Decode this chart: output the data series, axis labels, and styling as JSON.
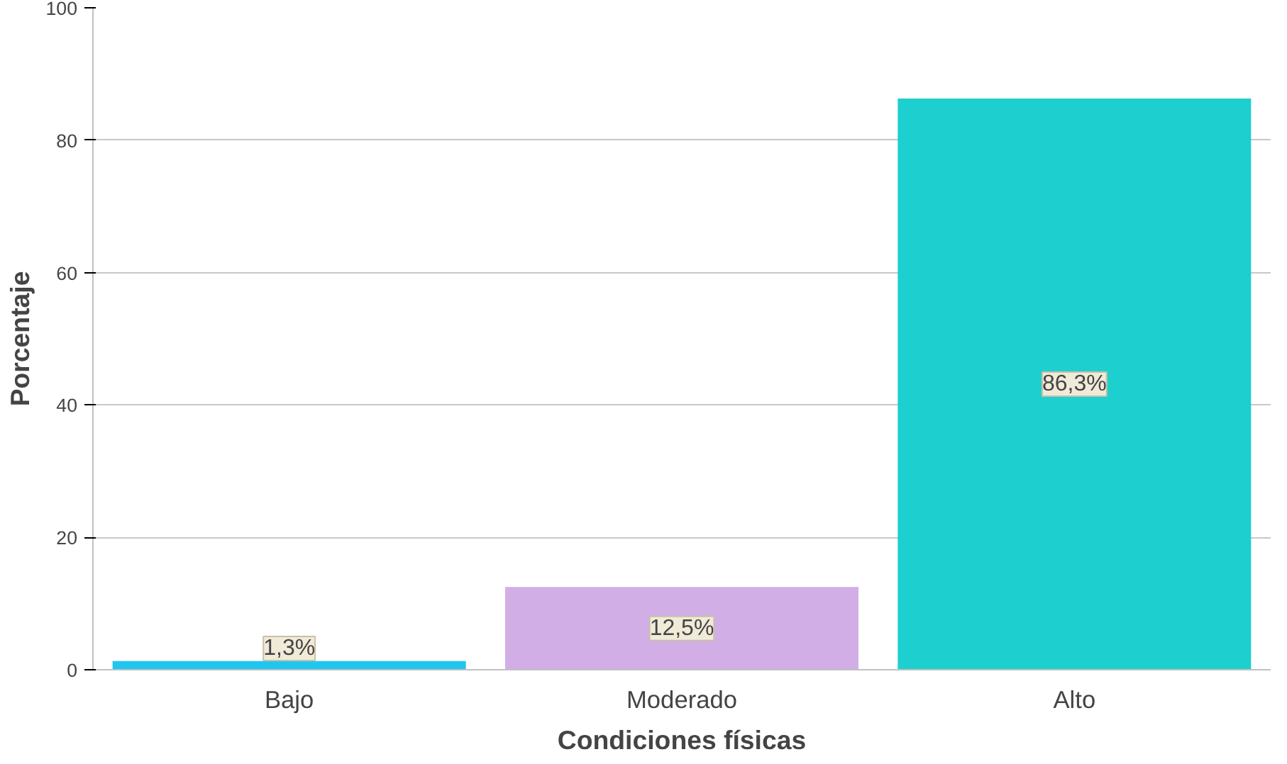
{
  "chart_data": {
    "type": "bar",
    "xlabel": "Condiciones físicas",
    "ylabel": "Porcentaje",
    "categories": [
      "Bajo",
      "Moderado",
      "Alto"
    ],
    "values": [
      1.3,
      12.5,
      86.3
    ],
    "colors": [
      "#1fc6f0",
      "#d2aee6",
      "#1ecfcf"
    ],
    "value_labels": [
      "1,3%",
      "12,5%",
      "86,3%"
    ],
    "ylim": [
      0,
      100
    ],
    "yticks": [
      0,
      20,
      40,
      60,
      80,
      100
    ],
    "grid": "y"
  }
}
